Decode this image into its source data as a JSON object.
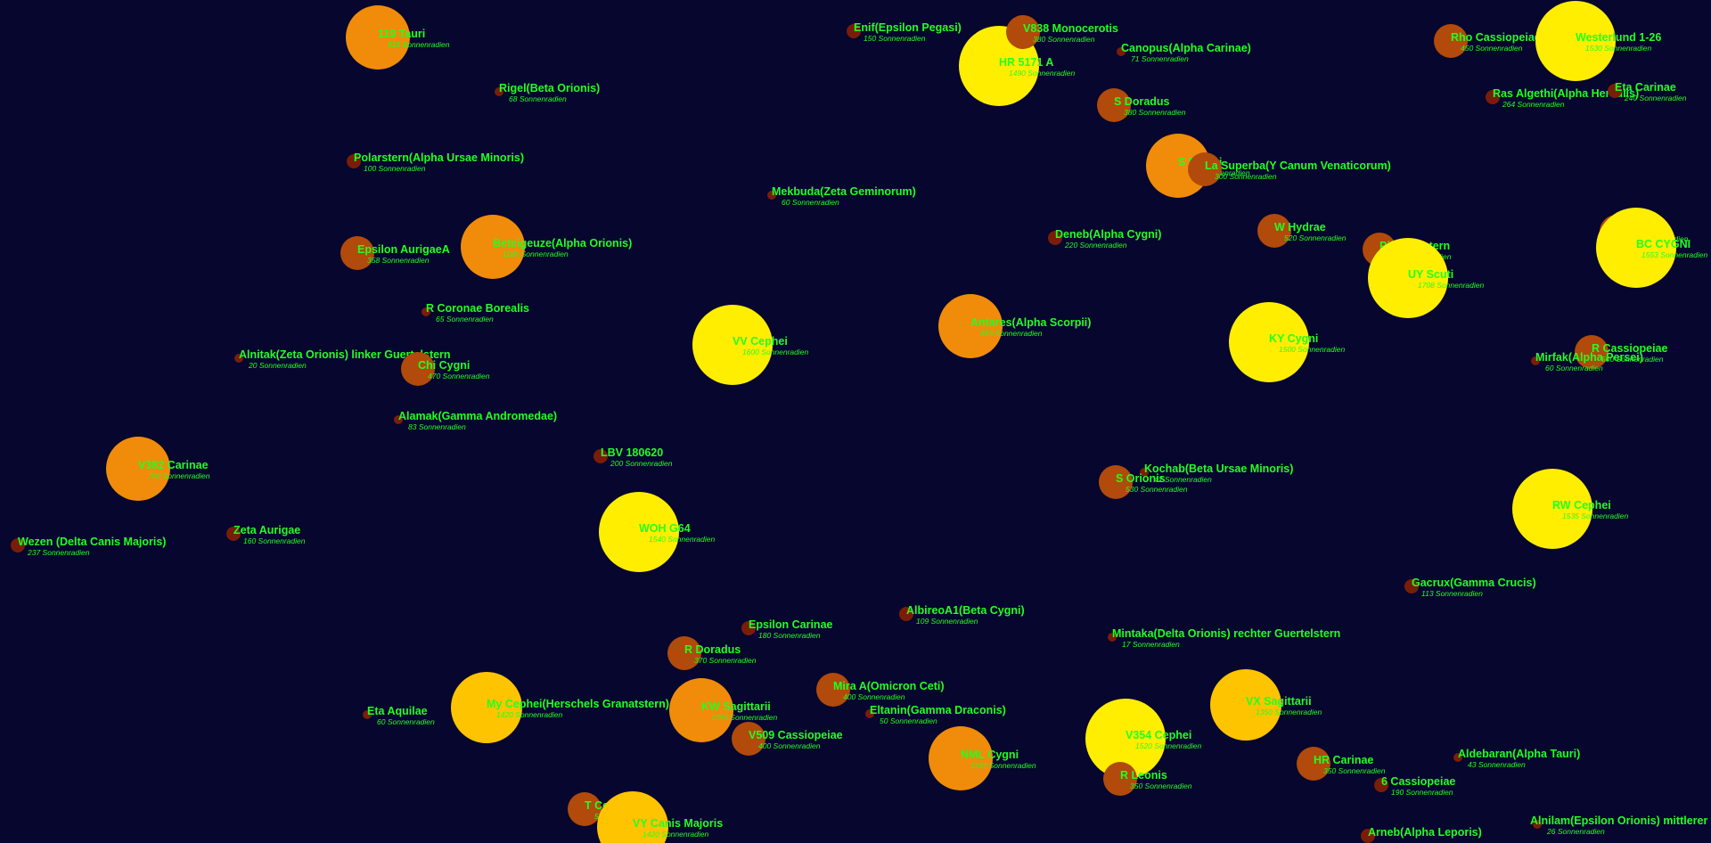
{
  "unit": "Sonnenradien",
  "colors": {
    "background": "#06062e",
    "label": "#22ff22",
    "small": "#7a1d08",
    "medium": "#b14a0a",
    "large": "#f08c0a",
    "xlarge": "#ffc400",
    "giant": "#ffee00"
  },
  "stars": [
    {
      "name": "119 Tauri",
      "radius": "610 Sonnenradien",
      "size": 610
    },
    {
      "name": "Rigel(Beta Orionis)",
      "radius": "68 Sonnenradien",
      "size": 68
    },
    {
      "name": "Polarstern(Alpha Ursae Minoris)",
      "radius": "100 Sonnenradien",
      "size": 100
    },
    {
      "name": "Epsilon AurigaeA",
      "radius": "358 Sonnenradien",
      "size": 358
    },
    {
      "name": "Beteigeuze(Alpha Orionis)",
      "radius": "1180 Sonnenradien",
      "size": 1180
    },
    {
      "name": "R Coronae Borealis",
      "radius": "65 Sonnenradien",
      "size": 65
    },
    {
      "name": "Alnitak(Zeta Orionis) linker Guertelstern",
      "radius": "20 Sonnenradien",
      "size": 20
    },
    {
      "name": "Chi Cygni",
      "radius": "470 Sonnenradien",
      "size": 470
    },
    {
      "name": "Alamak(Gamma Andromedae)",
      "radius": "83 Sonnenradien",
      "size": 83
    },
    {
      "name": "V382 Carinae",
      "radius": "700 Sonnenradien",
      "size": 700
    },
    {
      "name": "Zeta Aurigae",
      "radius": "160 Sonnenradien",
      "size": 160
    },
    {
      "name": "Wezen (Delta Canis Majoris)",
      "radius": "237 Sonnenradien",
      "size": 237
    },
    {
      "name": "Enif(Epsilon Pegasi)",
      "radius": "150 Sonnenradien",
      "size": 150
    },
    {
      "name": "Mekbuda(Zeta Geminorum)",
      "radius": "60 Sonnenradien",
      "size": 60
    },
    {
      "name": "VV Cephei",
      "radius": "1600 Sonnenradien",
      "size": 1600
    },
    {
      "name": "LBV 180620",
      "radius": "200 Sonnenradien",
      "size": 200
    },
    {
      "name": "WOH G64",
      "radius": "1540 Sonnenradien",
      "size": 1540
    },
    {
      "name": "Epsilon Carinae",
      "radius": "180 Sonnenradien",
      "size": 180
    },
    {
      "name": "R Doradus",
      "radius": "370 Sonnenradien",
      "size": 370
    },
    {
      "name": "My Cephei(Herschels Granatstern)",
      "radius": "1420 Sonnenradien",
      "size": 1420
    },
    {
      "name": "KW Sagittarii",
      "radius": "1009 Sonnenradien",
      "size": 1009
    },
    {
      "name": "Eta Aquilae",
      "radius": "60 Sonnenradien",
      "size": 60
    },
    {
      "name": "V509 Cassiopeiae",
      "radius": "400 Sonnenradien",
      "size": 400
    },
    {
      "name": "T Cephei",
      "radius": "540 Sonnenradien",
      "size": 540
    },
    {
      "name": "VY Canis Majoris",
      "radius": "1420 Sonnenradien",
      "size": 1420
    },
    {
      "name": "HR 5171 A",
      "radius": "1490 Sonnenradien",
      "size": 1490
    },
    {
      "name": "V838 Monocerotis",
      "radius": "380 Sonnenradien",
      "size": 380
    },
    {
      "name": "Canopus(Alpha Carinae)",
      "radius": "71 Sonnenradien",
      "size": 71
    },
    {
      "name": "S Doradus",
      "radius": "380 Sonnenradien",
      "size": 380
    },
    {
      "name": "S Persei",
      "radius": "780 Sonnenradien",
      "size": 780
    },
    {
      "name": "La Superba(Y Canum Venaticorum)",
      "radius": "300 Sonnenradien",
      "size": 300
    },
    {
      "name": "Deneb(Alpha Cygni)",
      "radius": "220 Sonnenradien",
      "size": 220
    },
    {
      "name": "Antares(Alpha Scorpii)",
      "radius": "883 Sonnenradien",
      "size": 883
    },
    {
      "name": "Kochab(Beta Ursae Minoris)",
      "radius": "42 Sonnenradien",
      "size": 42
    },
    {
      "name": "S Orionis",
      "radius": "530 Sonnenradien",
      "size": 530
    },
    {
      "name": "AlbireoA1(Beta Cygni)",
      "radius": "109 Sonnenradien",
      "size": 109
    },
    {
      "name": "Mira A(Omicron Ceti)",
      "radius": "400 Sonnenradien",
      "size": 400
    },
    {
      "name": "Eltanin(Gamma Draconis)",
      "radius": "50 Sonnenradien",
      "size": 50
    },
    {
      "name": "NML Cygni",
      "radius": "1183 Sonnenradien",
      "size": 1183
    },
    {
      "name": "Mintaka(Delta Orionis) rechter Guertelstern",
      "radius": "17 Sonnenradien",
      "size": 17
    },
    {
      "name": "V354 Cephei",
      "radius": "1520 Sonnenradien",
      "size": 1520
    },
    {
      "name": "R Leonis",
      "radius": "350 Sonnenradien",
      "size": 350
    },
    {
      "name": "W Hydrae",
      "radius": "520 Sonnenradien",
      "size": 520
    },
    {
      "name": "KY Cygni",
      "radius": "1500 Sonnenradien",
      "size": 1500
    },
    {
      "name": "VX Sagittarii",
      "radius": "1350 Sonnenradien",
      "size": 1350
    },
    {
      "name": "HR Carinae",
      "radius": "350 Sonnenradien",
      "size": 350
    },
    {
      "name": "6 Cassiopeiae",
      "radius": "190 Sonnenradien",
      "size": 190
    },
    {
      "name": "Arneb(Alpha Leporis)",
      "radius": "",
      "size": 129
    },
    {
      "name": "Rho Cassiopeiae",
      "radius": "450 Sonnenradien",
      "size": 450
    },
    {
      "name": "Westerlund 1-26",
      "radius": "1530 Sonnenradien",
      "size": 1530
    },
    {
      "name": "Ras Algethi(Alpha Herculis)",
      "radius": "264 Sonnenradien",
      "size": 264
    },
    {
      "name": "Eta Carinae",
      "radius": "240 Sonnenradien",
      "size": 240
    },
    {
      "name": "Pistolenstern",
      "radius": "340 Sonnenradien",
      "size": 340
    },
    {
      "name": "UY Scuti",
      "radius": "1708 Sonnenradien",
      "size": 1708
    },
    {
      "name": "Chi Cygni",
      "radius": "348 Sonnenradien",
      "size": 348
    },
    {
      "name": "BC CYGNI",
      "radius": "1553 Sonnenradien",
      "size": 1553
    },
    {
      "name": "R Cassiopeiae",
      "radius": "500 Sonnenradien",
      "size": 500
    },
    {
      "name": "Mirfak(Alpha Persei)",
      "radius": "60 Sonnenradien",
      "size": 60
    },
    {
      "name": "RW Cephei",
      "radius": "1535 Sonnenradien",
      "size": 1535
    },
    {
      "name": "Gacrux(Gamma Crucis)",
      "radius": "113 Sonnenradien",
      "size": 113
    },
    {
      "name": "Aldebaran(Alpha Tauri)",
      "radius": "43 Sonnenradien",
      "size": 43
    },
    {
      "name": "Alnilam(Epsilon Orionis) mittlerer",
      "radius": "26 Sonnenradien",
      "size": 26
    }
  ]
}
